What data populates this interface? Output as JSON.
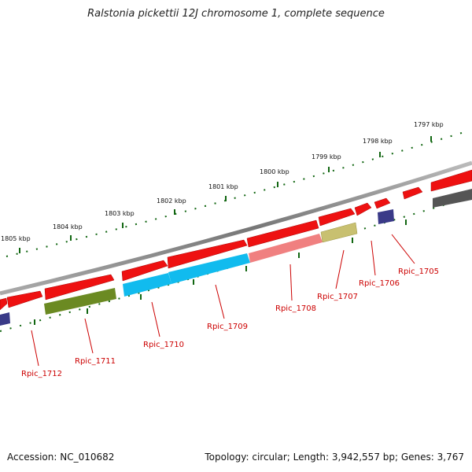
{
  "title": "Ralstonia pickettii 12J chromosome 1, complete sequence",
  "footer": {
    "accession": "Accession: NC_010682",
    "topology": "Topology: circular; Length: 3,942,557 bp; Genes: 3,767"
  },
  "ticks": [
    "1797 kbp",
    "1798 kbp",
    "1799 kbp",
    "1800 kbp",
    "1801 kbp",
    "1802 kbp",
    "1803 kbp",
    "1804 kbp",
    "1805 kbp"
  ],
  "gene_labels": [
    "Rpic_1705",
    "Rpic_1706",
    "Rpic_1707",
    "Rpic_1708",
    "Rpic_1709",
    "Rpic_1710",
    "Rpic_1711",
    "Rpic_1712"
  ],
  "colors": {
    "red": "#ee1111",
    "blue": "#11bbee",
    "olive": "#6b8a22",
    "pink": "#f08080",
    "khaki": "#c8c070",
    "navy": "#3a3a88",
    "gray": "#555555",
    "backbone": "#888888",
    "tick": "#116611",
    "label": "#cc0000"
  }
}
